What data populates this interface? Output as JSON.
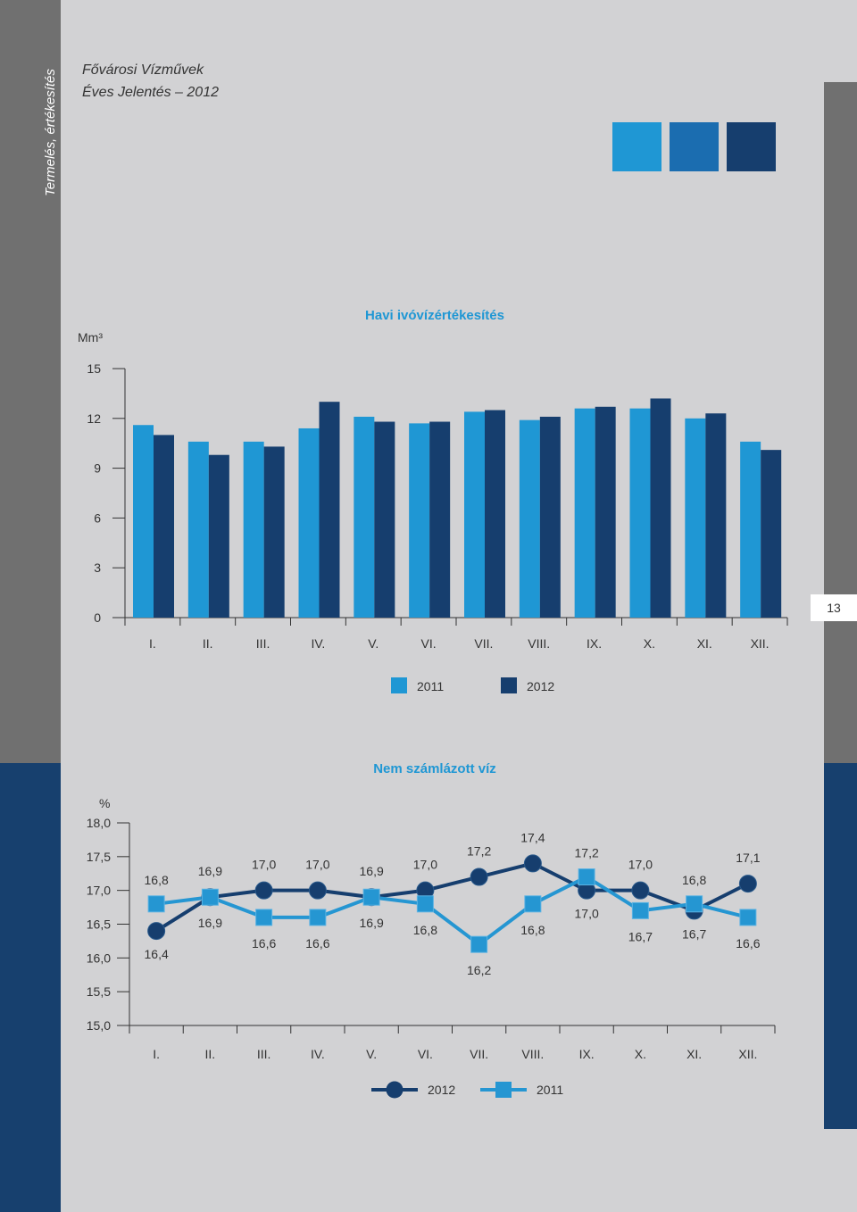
{
  "sidebar": {
    "section_label": "Termelés, értékesítés"
  },
  "header": {
    "org": "Fővárosi Vízművek",
    "subtitle": "Éves Jelentés – 2012"
  },
  "page": {
    "number": "13"
  },
  "colors": {
    "light_blue": "#1f97d4",
    "mid_blue": "#1b6db0",
    "dark_blue": "#163e6e",
    "gray": "#707070"
  },
  "chart_data": [
    {
      "type": "bar",
      "title": "Havi ivóvízértékesítés",
      "ylabel": "Mm³",
      "ylim": [
        0,
        15
      ],
      "yticks": [
        "0",
        "3",
        "6",
        "9",
        "12",
        "15"
      ],
      "categories": [
        "I.",
        "II.",
        "III.",
        "IV.",
        "V.",
        "VI.",
        "VII.",
        "VIII.",
        "IX.",
        "X.",
        "XI.",
        "XII."
      ],
      "series": [
        {
          "name": "2011",
          "color": "#1f97d4",
          "values": [
            11.6,
            10.6,
            10.6,
            11.4,
            12.1,
            11.7,
            12.4,
            11.9,
            12.6,
            12.6,
            12.0,
            10.6
          ]
        },
        {
          "name": "2012",
          "color": "#163e6e",
          "values": [
            11.0,
            9.8,
            10.3,
            13.0,
            11.8,
            11.8,
            12.5,
            12.1,
            12.7,
            13.2,
            12.3,
            10.1
          ]
        }
      ],
      "legend_position": "bottom"
    },
    {
      "type": "line",
      "title": "Nem számlázott víz",
      "ylabel": "%",
      "ylim": [
        15.0,
        18.0
      ],
      "yticks": [
        "15,0",
        "15,5",
        "16,0",
        "16,5",
        "17,0",
        "17,5",
        "18,0"
      ],
      "categories": [
        "I.",
        "II.",
        "III.",
        "IV.",
        "V.",
        "VI.",
        "VII.",
        "VIII.",
        "IX.",
        "X.",
        "XI.",
        "XII."
      ],
      "series": [
        {
          "name": "2012",
          "color": "#163e6e",
          "marker": "circle",
          "values": [
            16.4,
            16.9,
            17.0,
            17.0,
            16.9,
            17.0,
            17.2,
            17.4,
            17.0,
            17.0,
            16.7,
            17.1
          ],
          "labels": [
            "16,4",
            "16,9",
            "17,0",
            "17,0",
            "16,9",
            "17,0",
            "17,2",
            "17,4",
            "17,0",
            "17,0",
            "16,7",
            "17,1"
          ]
        },
        {
          "name": "2011",
          "color": "#2596d2",
          "marker": "square",
          "values": [
            16.8,
            16.9,
            16.6,
            16.6,
            16.9,
            16.8,
            16.2,
            16.8,
            17.2,
            16.7,
            16.8,
            16.6
          ],
          "labels": [
            "16,8",
            "16,9",
            "16,6",
            "16,6",
            "16,9",
            "16,8",
            "16,2",
            "16,8",
            "17,2",
            "16,7",
            "16,8",
            "16,6"
          ]
        }
      ],
      "legend_position": "bottom"
    }
  ]
}
